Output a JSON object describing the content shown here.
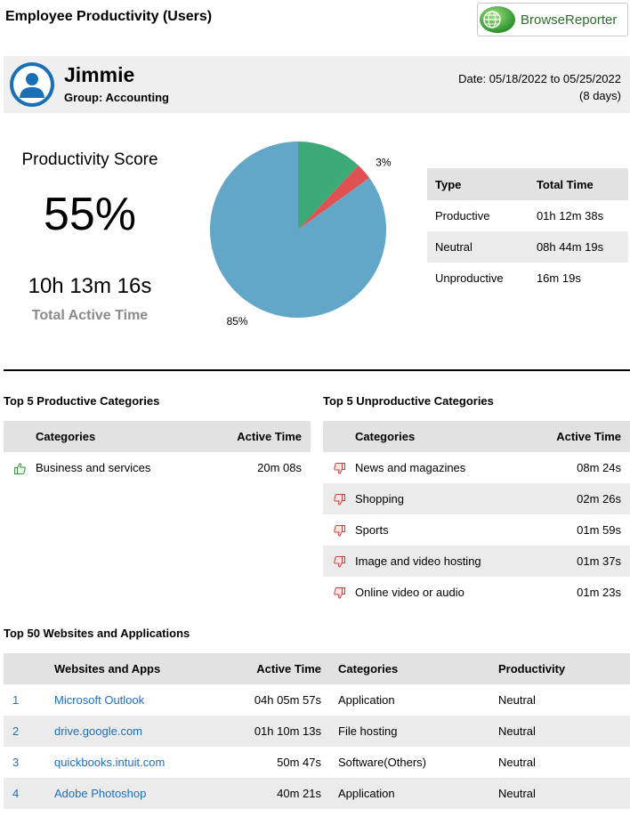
{
  "report": {
    "title": "Employee Productivity (Users)"
  },
  "logo": {
    "text_part1": "Browse",
    "text_part2": "Reporter"
  },
  "user": {
    "name": "Jimmie",
    "group": "Group: Accounting",
    "date_line1": "Date: 05/18/2022 to 05/25/2022",
    "date_line2": "(8 days)"
  },
  "score": {
    "label": "Productivity Score",
    "value": "55%",
    "active_time_value": "10h 13m 16s",
    "active_time_label": "Total Active Time"
  },
  "chart_data": {
    "type": "pie",
    "slices": [
      {
        "label": "12%",
        "value": 12,
        "color": "#3caa77"
      },
      {
        "label": "3%",
        "value": 3,
        "color": "#e05252"
      },
      {
        "label": "85%",
        "value": 85,
        "color": "#63a7c8"
      }
    ]
  },
  "type_table": {
    "headers": [
      "Type",
      "Total Time"
    ],
    "rows": [
      [
        "Productive",
        "01h 12m 38s"
      ],
      [
        "Neutral",
        "08h 44m 19s"
      ],
      [
        "Unproductive",
        "16m 19s"
      ]
    ]
  },
  "productive_categories": {
    "title": "Top 5 Productive Categories",
    "headers": [
      "Categories",
      "Active Time"
    ],
    "rows": [
      [
        "Business and services",
        "20m 08s"
      ]
    ]
  },
  "unproductive_categories": {
    "title": "Top 5 Unproductive Categories",
    "headers": [
      "Categories",
      "Active Time"
    ],
    "rows": [
      [
        "News and magazines",
        "08m 24s"
      ],
      [
        "Shopping",
        "02m 26s"
      ],
      [
        "Sports",
        "01m 59s"
      ],
      [
        "Image and video hosting",
        "01m 37s"
      ],
      [
        "Online video or audio",
        "01m 23s"
      ]
    ]
  },
  "sites": {
    "title": "Top 50 Websites and Applications",
    "headers": [
      "Websites and Apps",
      "Active Time",
      "Categories",
      "Productivity"
    ],
    "rows": [
      [
        "1",
        "Microsoft Outlook",
        "04h 05m 57s",
        "Application",
        "Neutral"
      ],
      [
        "2",
        "drive.google.com",
        "01h 10m 13s",
        "File hosting",
        "Neutral"
      ],
      [
        "3",
        "quickbooks.intuit.com",
        "50m 47s",
        "Software(Others)",
        "Neutral"
      ],
      [
        "4",
        "Adobe Photoshop",
        "40m 21s",
        "Application",
        "Neutral"
      ]
    ]
  }
}
